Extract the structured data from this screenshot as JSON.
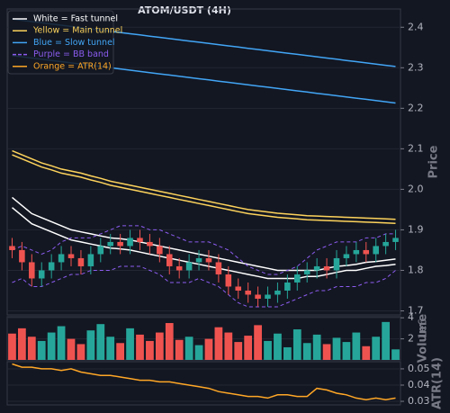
{
  "chart_data": [
    {
      "type": "candlestick",
      "title": "ATOM/USDT (4H)",
      "y_label": "Price",
      "ylim": [
        1.69,
        2.445
      ],
      "yticks": [
        1.7,
        1.8,
        1.9,
        {
          "value": 2,
          "label": "2.0"
        },
        2.1,
        2.2,
        2.3,
        2.4
      ],
      "grid": true,
      "legend": "upper left",
      "up_color": "#26a69a",
      "down_color": "#ef5350",
      "open": [
        1.86,
        1.85,
        1.82,
        1.78,
        1.8,
        1.82,
        1.84,
        1.83,
        1.81,
        1.84,
        1.86,
        1.87,
        1.86,
        1.88,
        1.87,
        1.86,
        1.84,
        1.81,
        1.8,
        1.82,
        1.83,
        1.82,
        1.79,
        1.76,
        1.75,
        1.74,
        1.73,
        1.74,
        1.75,
        1.77,
        1.79,
        1.8,
        1.81,
        1.8,
        1.83,
        1.84,
        1.85,
        1.84,
        1.86,
        1.87
      ],
      "high": [
        1.88,
        1.87,
        1.84,
        1.82,
        1.84,
        1.86,
        1.86,
        1.85,
        1.86,
        1.88,
        1.89,
        1.89,
        1.9,
        1.9,
        1.89,
        1.88,
        1.86,
        1.83,
        1.84,
        1.85,
        1.85,
        1.84,
        1.81,
        1.78,
        1.77,
        1.76,
        1.76,
        1.77,
        1.79,
        1.81,
        1.82,
        1.83,
        1.83,
        1.85,
        1.86,
        1.87,
        1.87,
        1.88,
        1.89,
        1.9
      ],
      "low": [
        1.83,
        1.8,
        1.76,
        1.76,
        1.78,
        1.8,
        1.81,
        1.79,
        1.79,
        1.82,
        1.84,
        1.84,
        1.84,
        1.85,
        1.84,
        1.82,
        1.79,
        1.78,
        1.78,
        1.8,
        1.8,
        1.77,
        1.74,
        1.73,
        1.72,
        1.71,
        1.71,
        1.72,
        1.73,
        1.75,
        1.77,
        1.78,
        1.78,
        1.78,
        1.81,
        1.82,
        1.82,
        1.82,
        1.84,
        1.85
      ],
      "close": [
        1.85,
        1.82,
        1.78,
        1.8,
        1.82,
        1.84,
        1.83,
        1.81,
        1.84,
        1.86,
        1.87,
        1.86,
        1.88,
        1.87,
        1.86,
        1.84,
        1.81,
        1.8,
        1.82,
        1.83,
        1.82,
        1.79,
        1.76,
        1.75,
        1.74,
        1.73,
        1.74,
        1.75,
        1.77,
        1.79,
        1.8,
        1.81,
        1.8,
        1.83,
        1.84,
        1.85,
        1.84,
        1.86,
        1.87,
        1.88
      ],
      "series": [
        {
          "name": "White = Fast tunnel",
          "color": "#ffffff",
          "upper": [
            1.98,
            1.96,
            1.94,
            1.93,
            1.92,
            1.91,
            1.9,
            1.895,
            1.89,
            1.885,
            1.88,
            1.878,
            1.875,
            1.87,
            1.865,
            1.86,
            1.855,
            1.85,
            1.845,
            1.84,
            1.835,
            1.83,
            1.825,
            1.82,
            1.815,
            1.81,
            1.805,
            1.8,
            1.8,
            1.8,
            1.8,
            1.8,
            1.805,
            1.81,
            1.812,
            1.815,
            1.82,
            1.822,
            1.825,
            1.828
          ],
          "lower": [
            1.955,
            1.935,
            1.915,
            1.905,
            1.895,
            1.885,
            1.875,
            1.87,
            1.865,
            1.86,
            1.855,
            1.853,
            1.85,
            1.845,
            1.84,
            1.835,
            1.83,
            1.825,
            1.82,
            1.815,
            1.81,
            1.805,
            1.8,
            1.795,
            1.79,
            1.785,
            1.78,
            1.78,
            1.78,
            1.78,
            1.785,
            1.785,
            1.79,
            1.795,
            1.8,
            1.8,
            1.805,
            1.81,
            1.812,
            1.815
          ]
        },
        {
          "name": "Yellow = Main tunnel",
          "color": "#fdd35c",
          "upper": [
            2.095,
            2.085,
            2.075,
            2.065,
            2.058,
            2.05,
            2.045,
            2.04,
            2.033,
            2.027,
            2.02,
            2.015,
            2.01,
            2.005,
            2.0,
            1.995,
            1.99,
            1.985,
            1.98,
            1.975,
            1.97,
            1.965,
            1.96,
            1.955,
            1.95,
            1.947,
            1.944,
            1.941,
            1.939,
            1.937,
            1.935,
            1.934,
            1.933,
            1.932,
            1.931,
            1.93,
            1.929,
            1.928,
            1.927,
            1.926
          ],
          "lower": [
            2.085,
            2.075,
            2.065,
            2.055,
            2.048,
            2.04,
            2.035,
            2.03,
            2.023,
            2.017,
            2.01,
            2.005,
            2.0,
            1.995,
            1.99,
            1.985,
            1.98,
            1.975,
            1.97,
            1.965,
            1.96,
            1.955,
            1.95,
            1.945,
            1.94,
            1.937,
            1.934,
            1.931,
            1.929,
            1.927,
            1.925,
            1.924,
            1.923,
            1.922,
            1.921,
            1.92,
            1.919,
            1.918,
            1.917,
            1.916
          ]
        },
        {
          "name": "Blue = Slow tunnel",
          "color": "#42a5f5",
          "upper": [
            2.42,
            2.417,
            2.414,
            2.411,
            2.408,
            2.405,
            2.402,
            2.399,
            2.396,
            2.393,
            2.39,
            2.387,
            2.384,
            2.381,
            2.378,
            2.375,
            2.372,
            2.369,
            2.366,
            2.363,
            2.36,
            2.357,
            2.354,
            2.351,
            2.348,
            2.345,
            2.342,
            2.339,
            2.336,
            2.333,
            2.33,
            2.327,
            2.324,
            2.321,
            2.318,
            2.315,
            2.312,
            2.309,
            2.306,
            2.303
          ],
          "lower": [
            2.33,
            2.327,
            2.324,
            2.321,
            2.318,
            2.315,
            2.312,
            2.309,
            2.306,
            2.303,
            2.3,
            2.297,
            2.294,
            2.291,
            2.288,
            2.285,
            2.282,
            2.279,
            2.276,
            2.273,
            2.27,
            2.267,
            2.264,
            2.261,
            2.258,
            2.255,
            2.252,
            2.249,
            2.246,
            2.243,
            2.24,
            2.237,
            2.234,
            2.231,
            2.228,
            2.225,
            2.222,
            2.219,
            2.216,
            2.213
          ]
        },
        {
          "name": "Purple = BB band",
          "color": "#8c5cf0",
          "dashed": true,
          "upper": [
            1.85,
            1.86,
            1.85,
            1.84,
            1.85,
            1.87,
            1.88,
            1.88,
            1.88,
            1.89,
            1.9,
            1.91,
            1.91,
            1.91,
            1.9,
            1.9,
            1.89,
            1.88,
            1.87,
            1.87,
            1.87,
            1.86,
            1.85,
            1.83,
            1.81,
            1.8,
            1.79,
            1.79,
            1.8,
            1.81,
            1.83,
            1.85,
            1.86,
            1.87,
            1.87,
            1.87,
            1.88,
            1.88,
            1.89,
            1.89
          ],
          "lower": [
            1.77,
            1.78,
            1.76,
            1.76,
            1.77,
            1.78,
            1.79,
            1.79,
            1.8,
            1.8,
            1.8,
            1.81,
            1.81,
            1.81,
            1.8,
            1.79,
            1.77,
            1.77,
            1.77,
            1.78,
            1.77,
            1.76,
            1.74,
            1.72,
            1.71,
            1.71,
            1.71,
            1.71,
            1.72,
            1.73,
            1.74,
            1.75,
            1.75,
            1.76,
            1.76,
            1.76,
            1.77,
            1.77,
            1.78,
            1.8
          ]
        }
      ]
    },
    {
      "type": "bar",
      "y_label": "Volume",
      "offset_label": "1e6",
      "ylim": [
        0,
        4.1
      ],
      "yticks": [
        2,
        4
      ],
      "values": [
        2.5,
        3.0,
        2.2,
        1.8,
        2.6,
        3.2,
        2.0,
        1.5,
        2.8,
        3.4,
        2.2,
        1.6,
        3.0,
        2.4,
        1.8,
        2.6,
        3.5,
        1.9,
        2.2,
        1.4,
        2.0,
        3.1,
        2.6,
        1.7,
        2.3,
        3.3,
        1.8,
        2.5,
        1.2,
        2.9,
        1.6,
        2.4,
        1.5,
        2.1,
        1.7,
        2.6,
        1.3,
        2.2,
        3.6,
        1.0
      ]
    },
    {
      "type": "line",
      "y_label": "ATR(14)",
      "ylim": [
        0.0278,
        0.0544
      ],
      "yticks": [
        0.03,
        0.04,
        0.05
      ],
      "series": [
        {
          "name": "Orange = ATR(14)",
          "color": "#ffa726",
          "values": [
            0.053,
            0.051,
            0.051,
            0.05,
            0.05,
            0.049,
            0.05,
            0.048,
            0.047,
            0.046,
            0.046,
            0.045,
            0.044,
            0.043,
            0.043,
            0.042,
            0.042,
            0.041,
            0.04,
            0.039,
            0.038,
            0.036,
            0.035,
            0.034,
            0.033,
            0.033,
            0.032,
            0.034,
            0.034,
            0.033,
            0.033,
            0.038,
            0.037,
            0.035,
            0.034,
            0.032,
            0.031,
            0.032,
            0.031,
            0.032
          ]
        }
      ]
    }
  ]
}
